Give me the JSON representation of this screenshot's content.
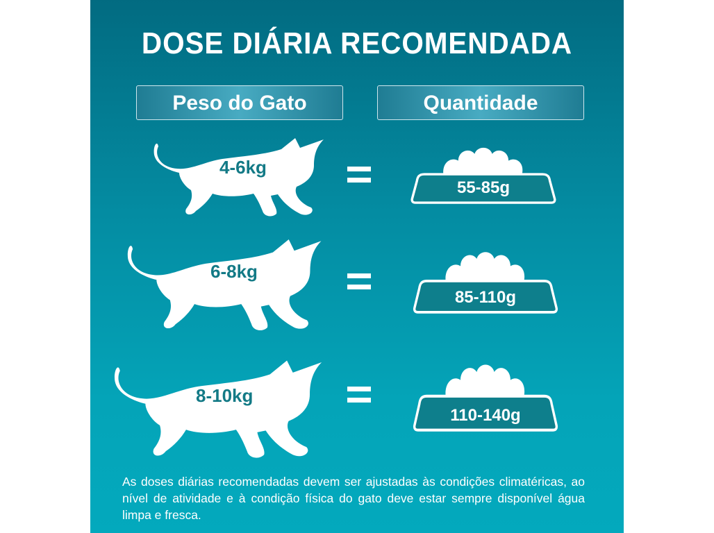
{
  "title": "DOSE DIÁRIA RECOMENDADA",
  "headers": {
    "weight": "Peso do Gato",
    "quantity": "Quantidade"
  },
  "rows": [
    {
      "weight": "4-6kg",
      "equals": "=",
      "quantity": "55-85g"
    },
    {
      "weight": "6-8kg",
      "equals": "=",
      "quantity": "85-110g"
    },
    {
      "weight": "8-10kg",
      "equals": "=",
      "quantity": "110-140g"
    }
  ],
  "note": "As doses diárias recomendadas devem ser ajustadas às condições climatéricas, ao nível de atividade e à condição física do gato deve estar sempre disponível água limpa e fresca.",
  "colors": {
    "background_top": "#026b81",
    "background_bottom": "#03a9bd",
    "label_text": "#137a86",
    "bowl_fill": "#0e7f8c"
  },
  "icons": [
    "cat-silhouette-icon",
    "food-bowl-icon"
  ]
}
